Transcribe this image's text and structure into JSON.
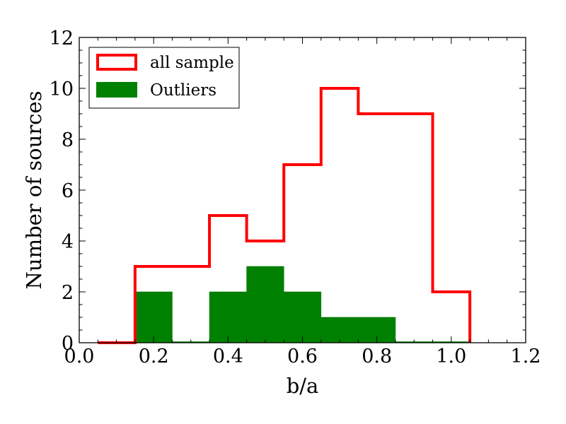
{
  "chart_data": {
    "type": "histogram",
    "xlabel": "b/a",
    "ylabel": "Number of sources",
    "xlim": [
      0.0,
      1.2
    ],
    "ylim": [
      0,
      12
    ],
    "xticks": [
      "0.0",
      "0.2",
      "0.4",
      "0.6",
      "0.8",
      "1.0",
      "1.2"
    ],
    "yticks": [
      "0",
      "2",
      "4",
      "6",
      "8",
      "10",
      "12"
    ],
    "grid": false,
    "legend_position": "top-left",
    "bin_edges": [
      0.05,
      0.15,
      0.25,
      0.35,
      0.45,
      0.55,
      0.65,
      0.75,
      0.85,
      0.95,
      1.05
    ],
    "series": [
      {
        "name": "all sample",
        "style": "step",
        "color": "#ff0000",
        "values": [
          0,
          3,
          3,
          5,
          4,
          7,
          10,
          9,
          9,
          2
        ]
      },
      {
        "name": "Outliers",
        "style": "filled",
        "color": "#008000",
        "values": [
          0,
          2,
          0,
          2,
          3,
          2,
          1,
          1,
          0,
          0
        ]
      }
    ]
  }
}
